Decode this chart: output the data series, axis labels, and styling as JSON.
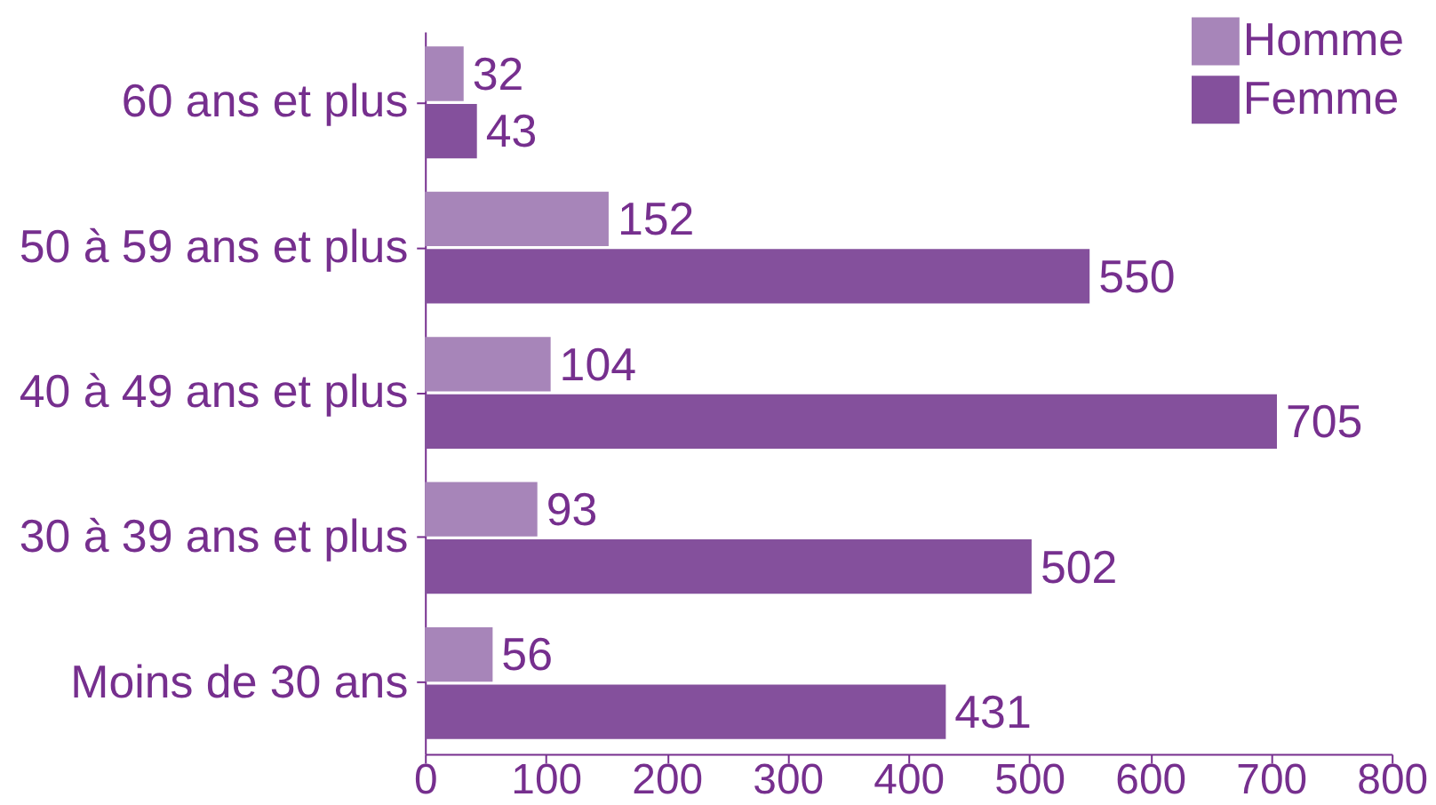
{
  "chart_data": {
    "type": "bar",
    "orientation": "horizontal",
    "categories": [
      "60 ans et plus",
      "50 à 59 ans et plus",
      "40 à 49 ans et plus",
      "30 à 39 ans et plus",
      "Moins de 30 ans"
    ],
    "series": [
      {
        "name": "Homme",
        "color": "#a785b9",
        "values": [
          32,
          152,
          104,
          93,
          56
        ]
      },
      {
        "name": "Femme",
        "color": "#84509c",
        "values": [
          43,
          550,
          705,
          502,
          431
        ]
      }
    ],
    "xlim": [
      0,
      800
    ],
    "xticks": [
      0,
      100,
      200,
      300,
      400,
      500,
      600,
      700,
      800
    ],
    "data_labels": true,
    "legend": "top right",
    "grid": false
  }
}
